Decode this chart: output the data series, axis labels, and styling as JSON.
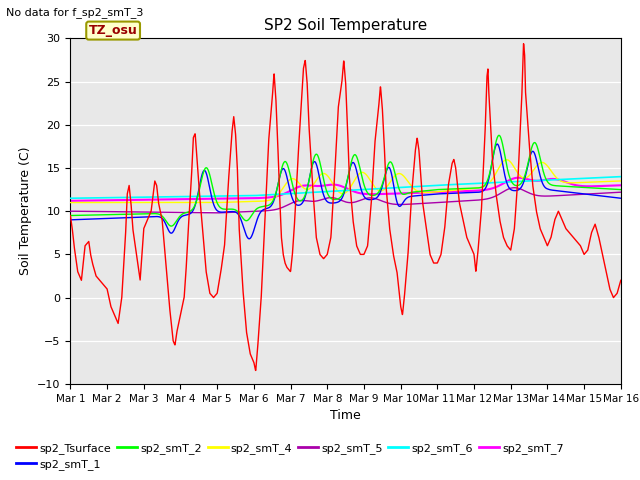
{
  "title": "SP2 Soil Temperature",
  "xlabel": "Time",
  "ylabel": "Soil Temperature (C)",
  "note": "No data for f_sp2_smT_3",
  "tz_label": "TZ_osu",
  "ylim": [
    -10,
    30
  ],
  "xlim": [
    0,
    15
  ],
  "x_ticks": [
    0,
    1,
    2,
    3,
    4,
    5,
    6,
    7,
    8,
    9,
    10,
    11,
    12,
    13,
    14,
    15
  ],
  "x_tick_labels": [
    "Mar 1",
    "Mar 2",
    "Mar 3",
    "Mar 4",
    "Mar 5",
    "Mar 6",
    "Mar 7",
    "Mar 8",
    "Mar 9",
    "Mar 10",
    "Mar 11",
    "Mar 12",
    "Mar 13",
    "Mar 14",
    "Mar 15",
    "Mar 16"
  ],
  "y_ticks": [
    -10,
    -5,
    0,
    5,
    10,
    15,
    20,
    25,
    30
  ],
  "plot_bg_color": "#e8e8e8",
  "series": {
    "sp2_Tsurface": {
      "color": "#ff0000",
      "linewidth": 1.0,
      "label": "sp2_Tsurface"
    },
    "sp2_smT_1": {
      "color": "#0000ff",
      "linewidth": 1.0,
      "label": "sp2_smT_1"
    },
    "sp2_smT_2": {
      "color": "#00ff00",
      "linewidth": 1.0,
      "label": "sp2_smT_2"
    },
    "sp2_smT_4": {
      "color": "#ffff00",
      "linewidth": 1.0,
      "label": "sp2_smT_4"
    },
    "sp2_smT_5": {
      "color": "#aa00aa",
      "linewidth": 1.0,
      "label": "sp2_smT_5"
    },
    "sp2_smT_6": {
      "color": "#00ffff",
      "linewidth": 1.2,
      "label": "sp2_smT_6"
    },
    "sp2_smT_7": {
      "color": "#ff00ff",
      "linewidth": 1.5,
      "label": "sp2_smT_7"
    }
  }
}
